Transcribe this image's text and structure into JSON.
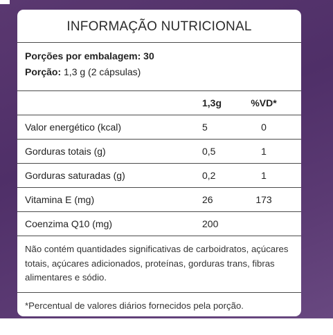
{
  "panel": {
    "title": "INFORMAÇÃO NUTRICIONAL",
    "portions_per_package_label": "Porções por embalagem:",
    "portions_per_package_value": "30",
    "portion_label": "Porção:",
    "portion_value": "1,3 g (2 cápsulas)"
  },
  "table": {
    "headers": {
      "name": "",
      "quantity": "1,3g",
      "daily_value": "%VD*"
    },
    "rows": [
      {
        "name": "Valor energético (kcal)",
        "quantity": "5",
        "daily_value": "0"
      },
      {
        "name": "Gorduras totais (g)",
        "quantity": "0,5",
        "daily_value": "1"
      },
      {
        "name": "Gorduras saturadas (g)",
        "quantity": "0,2",
        "daily_value": "1"
      },
      {
        "name": "Vitamina E (mg)",
        "quantity": "26",
        "daily_value": "173"
      },
      {
        "name": "Coenzima Q10 (mg)",
        "quantity": "200",
        "daily_value": ""
      }
    ]
  },
  "note": "Não contém quantidades significativas de carboidratos, açúcares totais, açúcares adicionados, proteínas, gorduras trans, fibras alimentares e sódio.",
  "footnote": "*Percentual de valores diários fornecidos pela porção."
}
